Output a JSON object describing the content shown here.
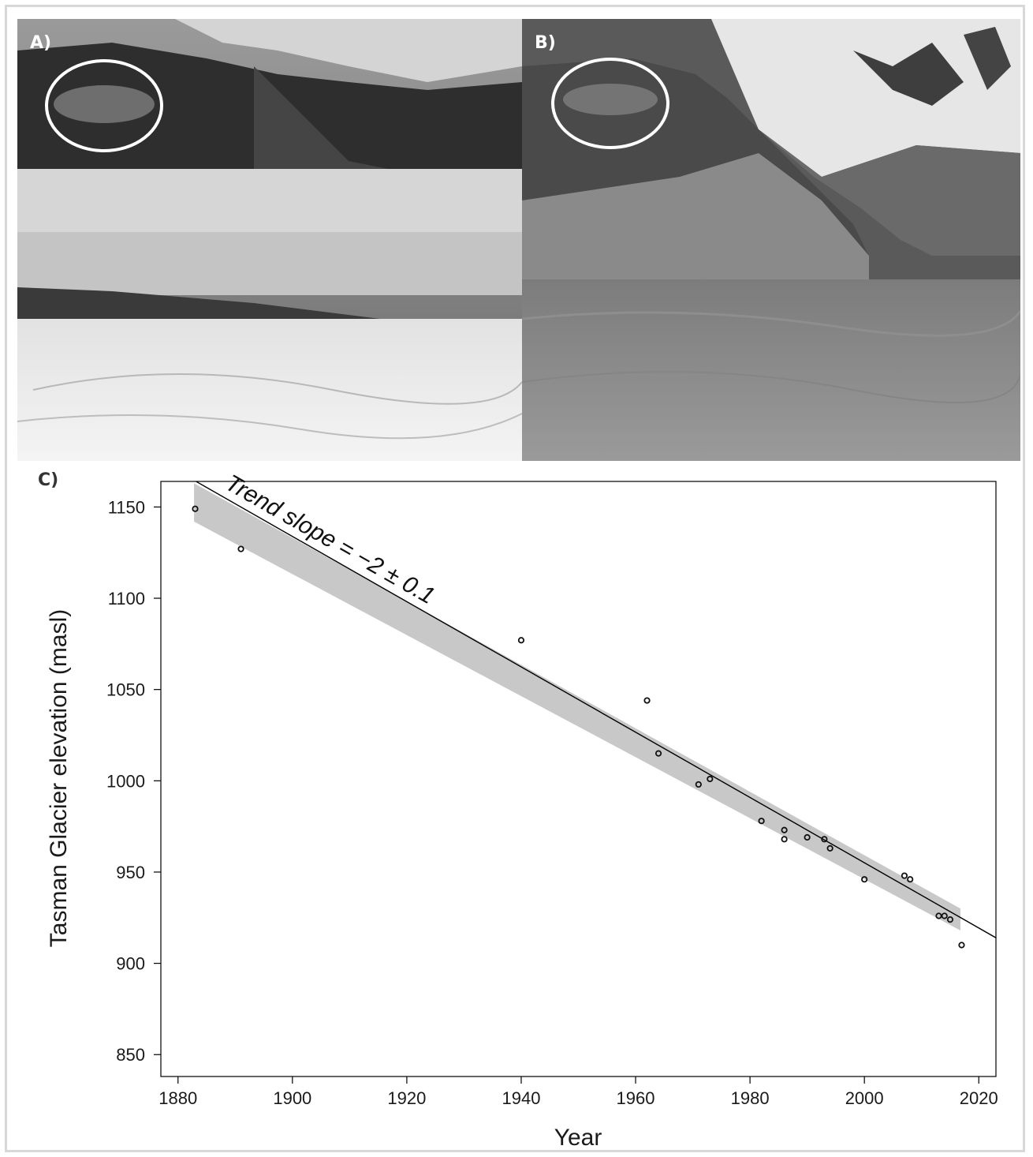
{
  "panels": {
    "a_label": "A)",
    "b_label": "B)",
    "c_label": "C)",
    "a_description": "Historical black-and-white photograph of Tasman Glacier with white ice surface; white ellipse marks a feature on the hillside",
    "b_description": "Recent photograph of the same view showing debris-covered glacier and moraine; white ellipse marks the same feature"
  },
  "colors": {
    "confidence_band": "#c8c8c8",
    "ellipse": "#ffffff",
    "axis": "#000000"
  },
  "chart_data": {
    "type": "scatter",
    "xlabel": "Year",
    "ylabel": "Tasman Glacier elevation (masl)",
    "xlim": [
      1877,
      2023
    ],
    "ylim": [
      838,
      1164
    ],
    "xticks": [
      1880,
      1900,
      1920,
      1940,
      1960,
      1980,
      2000,
      2020
    ],
    "yticks": [
      850,
      900,
      950,
      1000,
      1050,
      1100,
      1150
    ],
    "annotation": "Trend slope = −2 ± 0.1",
    "points": [
      {
        "x": 1883,
        "y": 1149
      },
      {
        "x": 1891,
        "y": 1127
      },
      {
        "x": 1940,
        "y": 1077
      },
      {
        "x": 1962,
        "y": 1044
      },
      {
        "x": 1964,
        "y": 1015
      },
      {
        "x": 1971,
        "y": 998
      },
      {
        "x": 1973,
        "y": 1001
      },
      {
        "x": 1982,
        "y": 978
      },
      {
        "x": 1986,
        "y": 973
      },
      {
        "x": 1986,
        "y": 968
      },
      {
        "x": 1990,
        "y": 969
      },
      {
        "x": 1993,
        "y": 968
      },
      {
        "x": 1994,
        "y": 963
      },
      {
        "x": 2000,
        "y": 946
      },
      {
        "x": 2007,
        "y": 948
      },
      {
        "x": 2008,
        "y": 946
      },
      {
        "x": 2013,
        "y": 926
      },
      {
        "x": 2014,
        "y": 926
      },
      {
        "x": 2015,
        "y": 924
      },
      {
        "x": 2017,
        "y": 910
      }
    ],
    "trend_line": {
      "x": [
        1877,
        2023
      ],
      "y": [
        1175,
        914
      ]
    },
    "confidence_band": {
      "x": [
        1882.8,
        2016.8
      ],
      "upper": [
        1163,
        930
      ],
      "lower": [
        1142,
        918
      ]
    },
    "grid": false,
    "legend": "none"
  }
}
